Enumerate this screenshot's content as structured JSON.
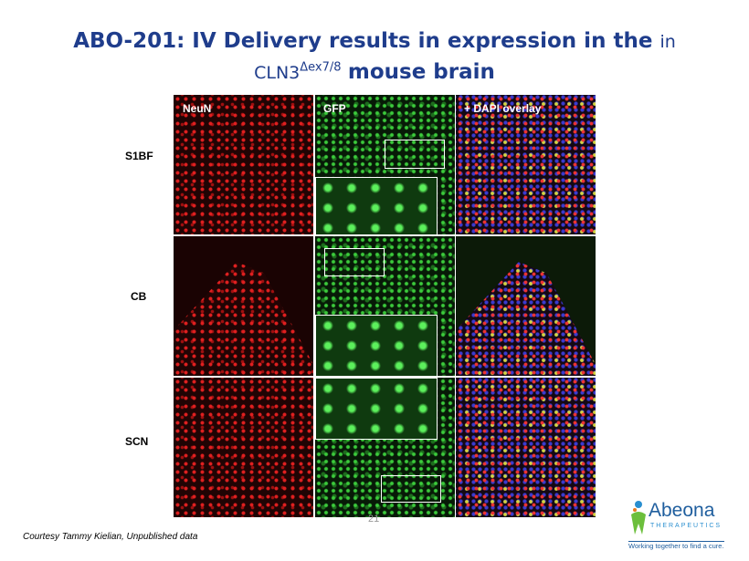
{
  "title": {
    "line1": "ABO-201: IV Delivery results in expression in the",
    "line1_small": "in",
    "line2_prefix": "CLN3",
    "superscript": "Δex7/8",
    "line2_bold": "mouse brain"
  },
  "figure": {
    "columns": [
      "NeuN",
      "GFP",
      "+ DAPI overlay"
    ],
    "rows": [
      "S1BF",
      "CB",
      "SCN"
    ]
  },
  "footer": {
    "page_number": "21",
    "credit": "Courtesy Tammy Kielian, Unpublished data"
  },
  "logo": {
    "name": "Abeona",
    "subtitle": "THERAPEUTICS",
    "tagline": "Working together to find a cure."
  }
}
